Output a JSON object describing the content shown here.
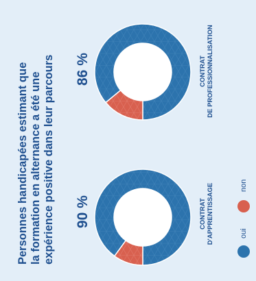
{
  "title_lines": [
    "Personnes handicapées estimant que",
    "la formation en alternance a été une",
    "expérience positive dans leur parcours"
  ],
  "colors": {
    "oui": "#2c73ad",
    "non": "#d8604f",
    "background": "#e3eef8",
    "text": "#1e4f8f"
  },
  "chart_data": [
    {
      "type": "pie",
      "labels": [
        "oui",
        "non"
      ],
      "values": [
        90,
        10
      ],
      "value_label": "90 %",
      "category_lines": [
        "CONTRAT",
        "D'APPRENTISSAGE"
      ]
    },
    {
      "type": "pie",
      "labels": [
        "oui",
        "non"
      ],
      "values": [
        86,
        14
      ],
      "value_label": "86 %",
      "category_lines": [
        "CONTRAT",
        "DE PROFESSIONNALISATION"
      ]
    }
  ],
  "legend": [
    {
      "label": "oui",
      "color": "#2c73ad"
    },
    {
      "label": "non",
      "color": "#d8604f"
    }
  ]
}
